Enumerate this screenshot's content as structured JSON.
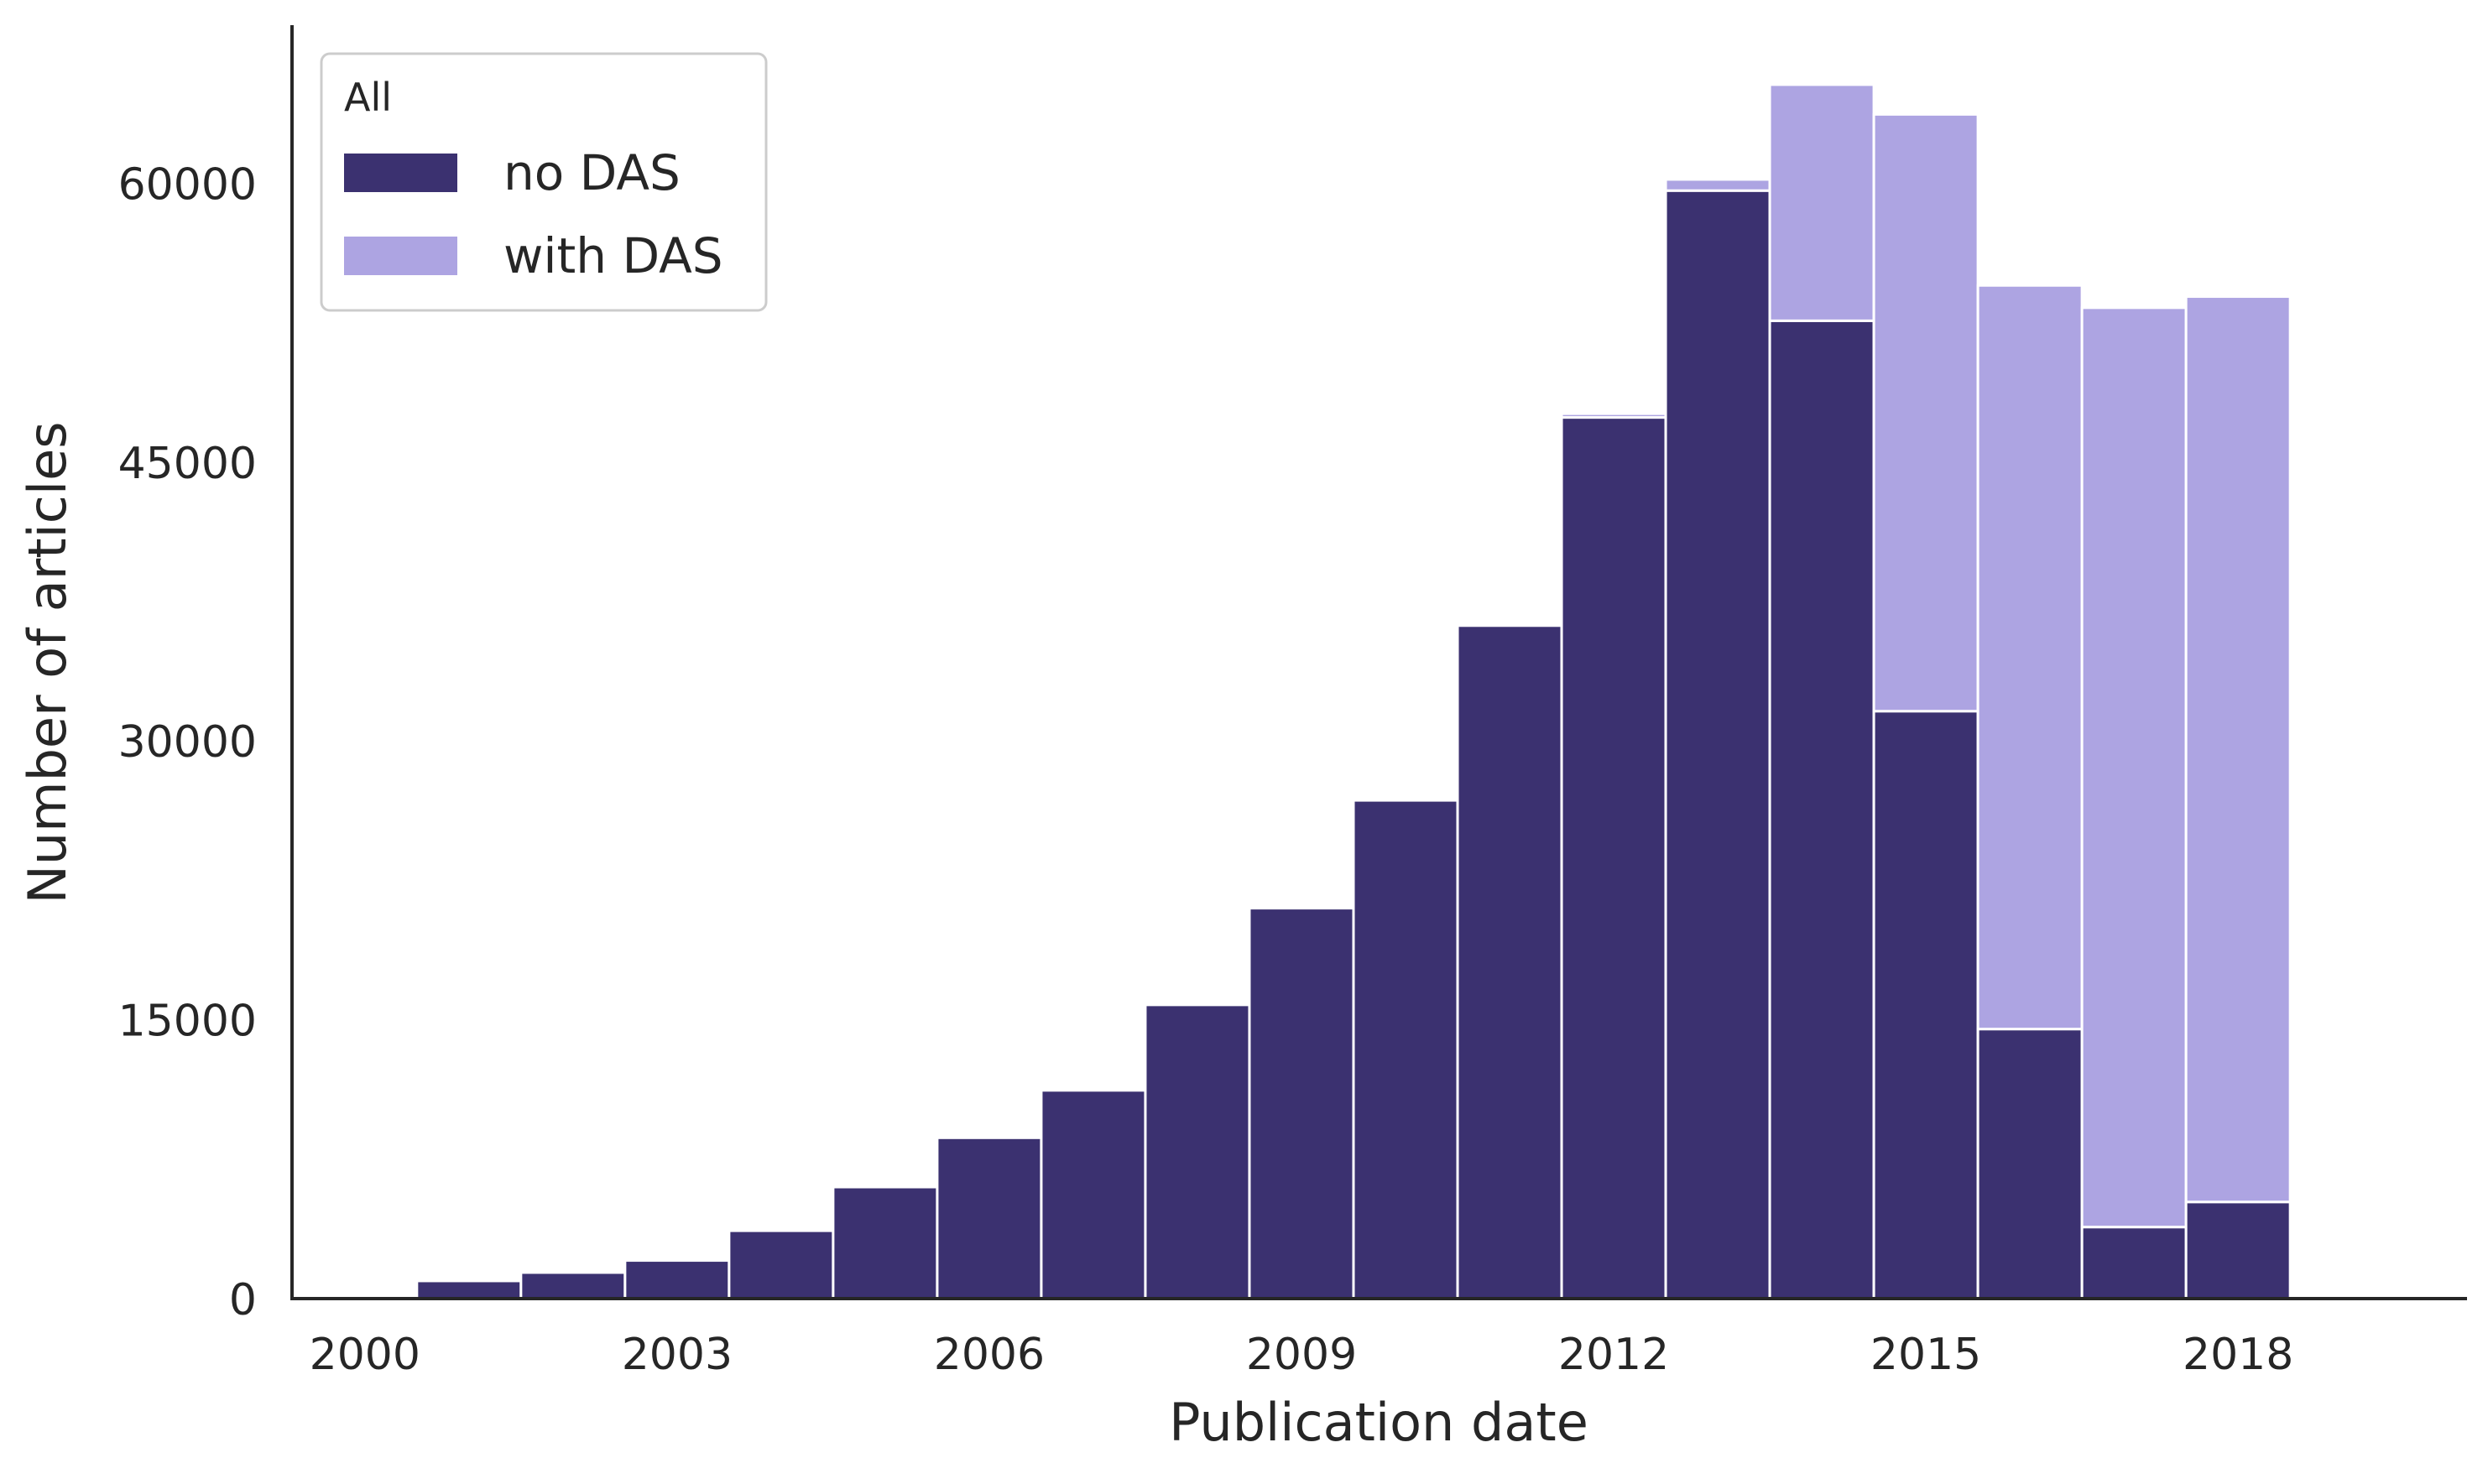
{
  "chart_data": {
    "type": "bar",
    "stacked": true,
    "xlabel": "Publication date",
    "ylabel": "Number of articles",
    "x": [
      2000,
      2001,
      2002,
      2003,
      2004,
      2005,
      2006,
      2007,
      2008,
      2009,
      2010,
      2011,
      2012,
      2013,
      2014,
      2015,
      2016,
      2017,
      2018
    ],
    "series": [
      {
        "name": "no DAS",
        "color": "#3b3170",
        "values": [
          150,
          950,
          1400,
          2050,
          3650,
          6000,
          8650,
          11200,
          15800,
          21000,
          26800,
          36200,
          47400,
          59600,
          52600,
          31600,
          14500,
          3850,
          5200
        ]
      },
      {
        "name": "with DAS",
        "color": "#ada4e2",
        "values": [
          0,
          0,
          0,
          0,
          0,
          0,
          0,
          0,
          0,
          0,
          0,
          0,
          200,
          600,
          12700,
          32100,
          40000,
          49450,
          48700
        ]
      }
    ],
    "xticks": [
      "2000",
      "2003",
      "2006",
      "2009",
      "2012",
      "2015",
      "2018"
    ],
    "yticks": [
      "0",
      "15000",
      "30000",
      "45000",
      "60000"
    ],
    "xlim": [
      1999.3,
      2020.2
    ],
    "ylim": [
      0,
      68500
    ],
    "grid": false,
    "legend": {
      "title": "All",
      "position": "top-left"
    }
  }
}
